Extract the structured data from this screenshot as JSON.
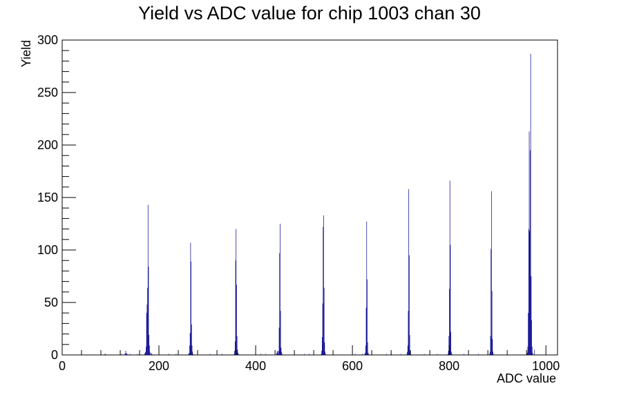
{
  "chart_data": {
    "type": "bar",
    "title": "Yield vs ADC value for chip 1003 chan 30",
    "xlabel": "ADC value",
    "ylabel": "Yield",
    "xlim": [
      0,
      1024
    ],
    "ylim": [
      0,
      300
    ],
    "x_ticks": [
      0,
      200,
      400,
      600,
      800,
      1000
    ],
    "y_ticks": [
      0,
      50,
      100,
      150,
      200,
      250,
      300
    ],
    "x_tick_labels": [
      "0",
      "200",
      "400",
      "600",
      "800",
      "1000"
    ],
    "y_tick_labels": [
      "0",
      "50",
      "100",
      "150",
      "200",
      "250",
      "300"
    ],
    "bin_width": 1,
    "grid": false,
    "line_color": "#00008b",
    "series": [
      {
        "points": [
          [
            88,
            1
          ],
          [
            89,
            1
          ],
          [
            122,
            1
          ],
          [
            129,
            1
          ],
          [
            130,
            1
          ],
          [
            131,
            4
          ],
          [
            132,
            2
          ],
          [
            133,
            1
          ],
          [
            135,
            1
          ],
          [
            140,
            1
          ],
          [
            155,
            1
          ],
          [
            160,
            1
          ],
          [
            170,
            1
          ],
          [
            171,
            2
          ],
          [
            172,
            3
          ],
          [
            173,
            8
          ],
          [
            174,
            40
          ],
          [
            175,
            48
          ],
          [
            176,
            64
          ],
          [
            177,
            143
          ],
          [
            178,
            84
          ],
          [
            179,
            19
          ],
          [
            180,
            9
          ],
          [
            181,
            3
          ],
          [
            182,
            1
          ],
          [
            184,
            2
          ],
          [
            185,
            1
          ],
          [
            220,
            1
          ],
          [
            235,
            1
          ],
          [
            261,
            1
          ],
          [
            262,
            2
          ],
          [
            263,
            9
          ],
          [
            264,
            21
          ],
          [
            265,
            107
          ],
          [
            266,
            89
          ],
          [
            267,
            29
          ],
          [
            268,
            9
          ],
          [
            269,
            3
          ],
          [
            270,
            1
          ],
          [
            305,
            1
          ],
          [
            330,
            1
          ],
          [
            355,
            1
          ],
          [
            356,
            4
          ],
          [
            357,
            13
          ],
          [
            358,
            90
          ],
          [
            359,
            120
          ],
          [
            360,
            67
          ],
          [
            361,
            18
          ],
          [
            362,
            5
          ],
          [
            363,
            2
          ],
          [
            364,
            1
          ],
          [
            410,
            1
          ],
          [
            420,
            1
          ],
          [
            443,
            2
          ],
          [
            444,
            4
          ],
          [
            445,
            3
          ],
          [
            446,
            1
          ],
          [
            447,
            4
          ],
          [
            448,
            26
          ],
          [
            449,
            97
          ],
          [
            450,
            125
          ],
          [
            451,
            42
          ],
          [
            452,
            7
          ],
          [
            453,
            3
          ],
          [
            454,
            1
          ],
          [
            500,
            1
          ],
          [
            510,
            1
          ],
          [
            535,
            1
          ],
          [
            536,
            4
          ],
          [
            537,
            17
          ],
          [
            538,
            49
          ],
          [
            539,
            122
          ],
          [
            540,
            133
          ],
          [
            541,
            64
          ],
          [
            542,
            12
          ],
          [
            543,
            3
          ],
          [
            544,
            1
          ],
          [
            605,
            1
          ],
          [
            620,
            1
          ],
          [
            625,
            1
          ],
          [
            626,
            2
          ],
          [
            627,
            9
          ],
          [
            628,
            45
          ],
          [
            629,
            127
          ],
          [
            630,
            72
          ],
          [
            631,
            12
          ],
          [
            632,
            2
          ],
          [
            633,
            1
          ],
          [
            670,
            1
          ],
          [
            680,
            1
          ],
          [
            700,
            1
          ],
          [
            712,
            1
          ],
          [
            713,
            3
          ],
          [
            714,
            9
          ],
          [
            715,
            42
          ],
          [
            716,
            158
          ],
          [
            717,
            95
          ],
          [
            718,
            19
          ],
          [
            719,
            3
          ],
          [
            720,
            1
          ],
          [
            748,
            1
          ],
          [
            775,
            1
          ],
          [
            797,
            1
          ],
          [
            798,
            4
          ],
          [
            799,
            18
          ],
          [
            800,
            63
          ],
          [
            801,
            166
          ],
          [
            802,
            105
          ],
          [
            803,
            22
          ],
          [
            804,
            3
          ],
          [
            805,
            1
          ],
          [
            830,
            1
          ],
          [
            860,
            1
          ],
          [
            883,
            1
          ],
          [
            884,
            3
          ],
          [
            885,
            18
          ],
          [
            886,
            101
          ],
          [
            887,
            156
          ],
          [
            888,
            61
          ],
          [
            889,
            15
          ],
          [
            890,
            3
          ],
          [
            891,
            1
          ],
          [
            960,
            1
          ],
          [
            961,
            2
          ],
          [
            962,
            8
          ],
          [
            963,
            40
          ],
          [
            964,
            120
          ],
          [
            965,
            213
          ],
          [
            966,
            118
          ],
          [
            967,
            195
          ],
          [
            968,
            287
          ],
          [
            969,
            75
          ],
          [
            970,
            33
          ],
          [
            971,
            8
          ],
          [
            972,
            2
          ],
          [
            976,
            5
          ]
        ]
      }
    ]
  }
}
